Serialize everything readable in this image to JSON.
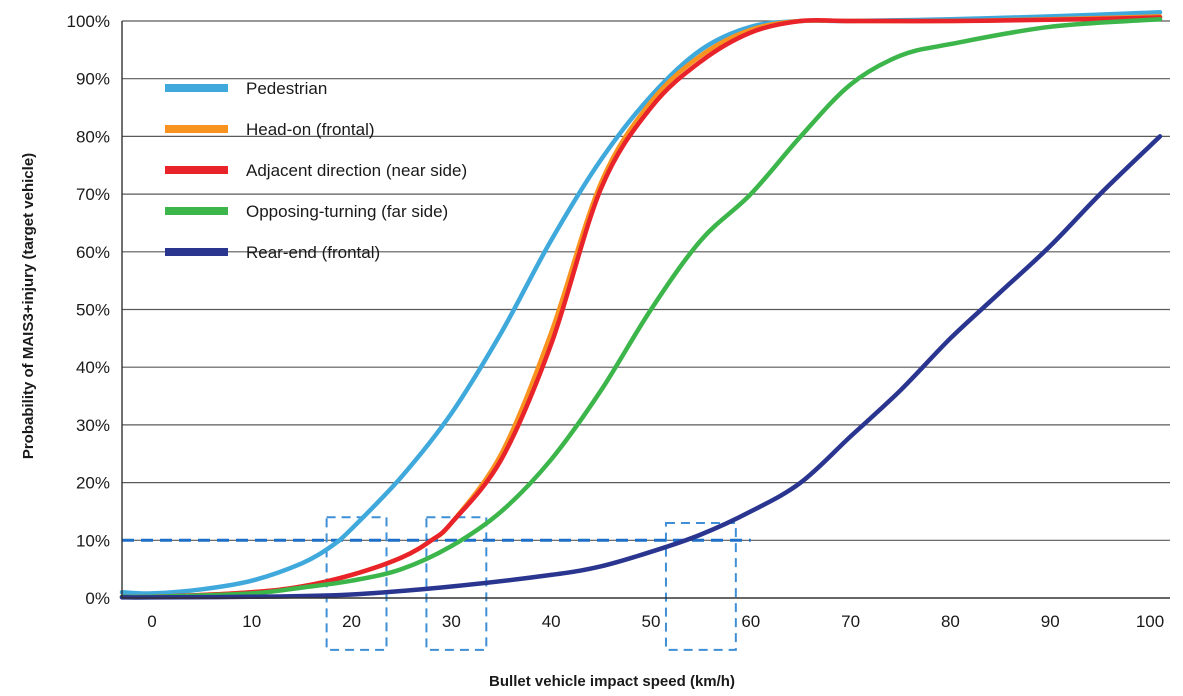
{
  "chart_data": {
    "type": "line",
    "xlabel": "Bullet vehicle impact speed (km/h)",
    "ylabel": "Probability of MAIS3+injury (target vehicle)",
    "xlim": [
      -3,
      102
    ],
    "ylim": [
      0,
      100
    ],
    "x_ticks": [
      "0",
      "10",
      "20",
      "30",
      "40",
      "50",
      "60",
      "70",
      "80",
      "90",
      "100"
    ],
    "y_ticks": [
      "0%",
      "10%",
      "20%",
      "30%",
      "40%",
      "50%",
      "60%",
      "70%",
      "80%",
      "90%",
      "100%"
    ],
    "grid": "horizontal",
    "legend_position": "top-left",
    "reference_line": {
      "y": 10,
      "x_end": 60,
      "color": "#1e6fc8",
      "style": "dashed"
    },
    "highlight_boxes": [
      {
        "x": [
          17.5,
          23.5
        ],
        "y": [
          -9,
          14
        ]
      },
      {
        "x": [
          27.5,
          33.5
        ],
        "y": [
          -9,
          14
        ]
      },
      {
        "x": [
          51.5,
          58.5
        ],
        "y": [
          -9,
          13
        ]
      }
    ],
    "series": [
      {
        "name": "Pedestrian",
        "color": "#3fa9dc",
        "points": [
          [
            -3,
            1
          ],
          [
            0,
            0.8
          ],
          [
            5,
            1.5
          ],
          [
            10,
            3
          ],
          [
            15,
            6
          ],
          [
            18,
            9
          ],
          [
            20,
            12
          ],
          [
            25,
            21
          ],
          [
            30,
            32
          ],
          [
            35,
            46
          ],
          [
            40,
            62
          ],
          [
            45,
            76
          ],
          [
            50,
            87
          ],
          [
            55,
            95
          ],
          [
            60,
            99
          ],
          [
            65,
            100
          ],
          [
            70,
            100
          ],
          [
            80,
            100.3
          ],
          [
            90,
            100.8
          ],
          [
            101,
            101.5
          ]
        ]
      },
      {
        "name": "Head-on (frontal)",
        "color": "#f7931e",
        "points": [
          [
            -3,
            0.2
          ],
          [
            0,
            0.2
          ],
          [
            10,
            1
          ],
          [
            15,
            2
          ],
          [
            20,
            4
          ],
          [
            25,
            7
          ],
          [
            28,
            10
          ],
          [
            30,
            13
          ],
          [
            35,
            25
          ],
          [
            40,
            46
          ],
          [
            45,
            72
          ],
          [
            50,
            86
          ],
          [
            55,
            94
          ],
          [
            60,
            98.5
          ],
          [
            65,
            100
          ],
          [
            70,
            100
          ],
          [
            80,
            100
          ],
          [
            90,
            100.3
          ],
          [
            101,
            100.8
          ]
        ]
      },
      {
        "name": "Adjacent direction (near side)",
        "color": "#e8232a",
        "points": [
          [
            -3,
            0.2
          ],
          [
            0,
            0.2
          ],
          [
            10,
            1
          ],
          [
            15,
            2
          ],
          [
            20,
            4
          ],
          [
            25,
            7
          ],
          [
            28,
            10
          ],
          [
            30,
            13
          ],
          [
            35,
            24
          ],
          [
            40,
            44
          ],
          [
            45,
            71
          ],
          [
            50,
            85
          ],
          [
            55,
            93
          ],
          [
            60,
            98
          ],
          [
            65,
            100
          ],
          [
            70,
            100
          ],
          [
            80,
            100
          ],
          [
            90,
            100.2
          ],
          [
            101,
            100.6
          ]
        ]
      },
      {
        "name": "Opposing-turning (far side)",
        "color": "#3cb54a",
        "points": [
          [
            -3,
            0.2
          ],
          [
            0,
            0.2
          ],
          [
            10,
            0.8
          ],
          [
            15,
            1.8
          ],
          [
            20,
            3
          ],
          [
            25,
            5
          ],
          [
            30,
            9
          ],
          [
            35,
            15
          ],
          [
            40,
            24
          ],
          [
            45,
            36
          ],
          [
            50,
            50
          ],
          [
            55,
            62
          ],
          [
            60,
            70
          ],
          [
            65,
            80
          ],
          [
            70,
            89
          ],
          [
            75,
            94
          ],
          [
            80,
            96
          ],
          [
            90,
            99
          ],
          [
            101,
            100.3
          ]
        ]
      },
      {
        "name": "Rear-end (frontal)",
        "color": "#2a3590",
        "points": [
          [
            -3,
            0.1
          ],
          [
            0,
            0.1
          ],
          [
            10,
            0.2
          ],
          [
            20,
            0.6
          ],
          [
            30,
            2
          ],
          [
            40,
            4
          ],
          [
            45,
            5.5
          ],
          [
            50,
            8
          ],
          [
            55,
            11
          ],
          [
            60,
            15
          ],
          [
            65,
            20
          ],
          [
            70,
            28
          ],
          [
            75,
            36
          ],
          [
            80,
            45
          ],
          [
            85,
            53
          ],
          [
            90,
            61
          ],
          [
            95,
            70
          ],
          [
            101,
            80
          ]
        ]
      }
    ]
  }
}
